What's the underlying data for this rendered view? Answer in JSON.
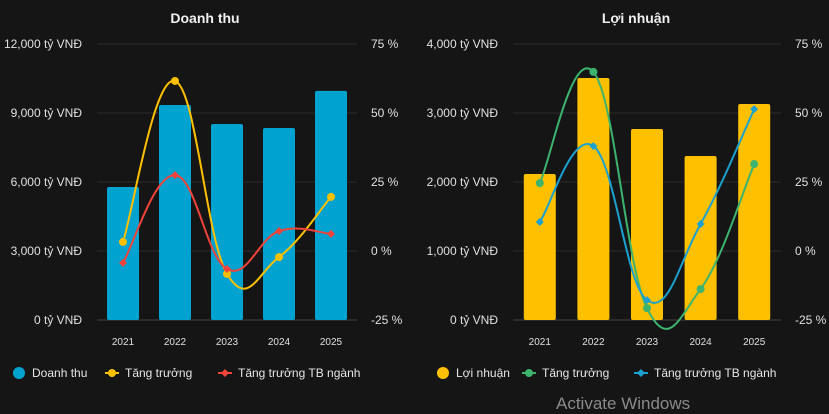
{
  "chart_data": [
    {
      "type": "bar",
      "title": "Doanh thu",
      "categories": [
        "2021",
        "2022",
        "2023",
        "2024",
        "2025"
      ],
      "left_axis": {
        "ticks": [
          "0 tỷ VNĐ",
          "3,000 tỷ VNĐ",
          "6,000 tỷ VNĐ",
          "9,000 tỷ VNĐ",
          "12,000 tỷ VNĐ"
        ],
        "range": [
          0,
          12000
        ]
      },
      "right_axis": {
        "ticks": [
          "-25 %",
          "0 %",
          "25 %",
          "50 %",
          "75 %"
        ],
        "range": [
          -25,
          75
        ]
      },
      "series": [
        {
          "name": "Doanh thu",
          "kind": "bar",
          "axis": "left",
          "color": "#00a3cf",
          "values": [
            5780,
            9350,
            8520,
            8350,
            9960
          ]
        },
        {
          "name": "Tăng trưởng",
          "kind": "line",
          "marker": "circle",
          "axis": "right",
          "color": "#ffc000",
          "values": [
            3.3,
            61.6,
            -8.3,
            -2.2,
            19.6
          ]
        },
        {
          "name": "Tăng trưởng TB ngành",
          "kind": "line",
          "marker": "diamond",
          "axis": "right",
          "color": "#f0433a",
          "values": [
            -4.3,
            27.5,
            -6.5,
            7.2,
            6.2
          ]
        }
      ],
      "grid": true,
      "legend_placement": "bottom"
    },
    {
      "type": "bar",
      "title": "Lợi nhuận",
      "categories": [
        "2021",
        "2022",
        "2023",
        "2024",
        "2025"
      ],
      "left_axis": {
        "ticks": [
          "0 tỷ VNĐ",
          "1,000 tỷ VNĐ",
          "2,000 tỷ VNĐ",
          "3,000 tỷ VNĐ",
          "4,000 tỷ VNĐ"
        ],
        "range": [
          0,
          4000
        ]
      },
      "right_axis": {
        "ticks": [
          "-25 %",
          "0 %",
          "25 %",
          "50 %",
          "75 %"
        ],
        "range": [
          -25,
          75
        ]
      },
      "series": [
        {
          "name": "Lợi nhuận",
          "kind": "bar",
          "axis": "left",
          "color": "#ffc000",
          "values": [
            2116,
            3507,
            2768,
            2377,
            3130
          ]
        },
        {
          "name": "Tăng trưởng",
          "kind": "line",
          "marker": "circle",
          "axis": "right",
          "color": "#3cb46e",
          "values": [
            24.6,
            64.9,
            -20.7,
            -13.8,
            31.5
          ]
        },
        {
          "name": "Tăng trưởng TB ngành",
          "kind": "line",
          "marker": "diamond",
          "axis": "right",
          "color": "#1ba1d0",
          "values": [
            10.5,
            38.0,
            -17.8,
            9.8,
            51.4
          ]
        }
      ],
      "grid": true,
      "legend_placement": "bottom"
    }
  ],
  "overlay": {
    "activate_text": "Activate Windows"
  }
}
